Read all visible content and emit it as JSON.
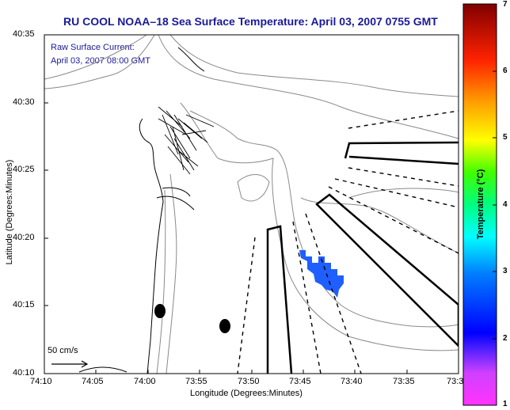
{
  "title": "RU COOL  NOAA–18  Sea Surface Temperature:  April 03, 2007 0755 GMT",
  "annotation": {
    "line1": "Raw Surface Current:",
    "line2": "April 03, 2007 08:00 GMT"
  },
  "axes": {
    "xlabel": "Longitude (Degrees:Minutes)",
    "ylabel": "Latitude (Degrees:Minutes)",
    "xticks": [
      "74:10",
      "74:05",
      "74:00",
      "73:55",
      "73:50",
      "73:45",
      "73:40",
      "73:35",
      "73:3"
    ],
    "yticks": [
      "40:35",
      "40:30",
      "40:25",
      "40:20",
      "40:15",
      "40:10"
    ]
  },
  "colorbar": {
    "title": "Temperature (°C)",
    "ticks": [
      "7",
      "6",
      "5",
      "4",
      "3",
      "2",
      "1"
    ],
    "range": [
      1,
      7
    ]
  },
  "scale_vector": {
    "label": "50 cm/s"
  },
  "colors": {
    "title": "#1a1a99",
    "sst_patch": "#1f5fff",
    "contour": "#8a8a8a"
  }
}
